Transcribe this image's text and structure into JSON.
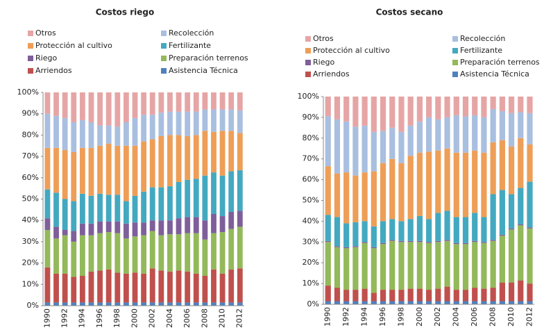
{
  "chart_data": [
    {
      "type": "bar",
      "stacked": true,
      "title": "Costos riego",
      "categories": [
        "1990",
        null,
        "1992",
        null,
        "1994",
        null,
        "1996",
        null,
        "1998",
        null,
        "2000",
        null,
        "2002",
        null,
        "2004",
        null,
        "2006",
        null,
        "2008",
        null,
        "2010",
        null,
        "2012"
      ],
      "ylim": [
        0,
        100
      ],
      "yticks": [
        {
          "value": 0,
          "label": "0%"
        },
        {
          "value": 10,
          "label": "10%"
        },
        {
          "value": 20,
          "label": "20%"
        },
        {
          "value": 30,
          "label": "30%"
        },
        {
          "value": 40,
          "label": "40%"
        },
        {
          "value": 50,
          "label": "50%"
        },
        {
          "value": 60,
          "label": "60%"
        },
        {
          "value": 70,
          "label": "70%"
        },
        {
          "value": 80,
          "label": "80%"
        },
        {
          "value": 90,
          "label": "90%"
        },
        {
          "value": 100,
          "label": "100%"
        }
      ],
      "series": [
        {
          "name": "Otros",
          "color": "#e6a5a5",
          "values": [
            10,
            11,
            12,
            14,
            13,
            14,
            15.5,
            15.5,
            16,
            14,
            12,
            10.5,
            10.5,
            9.5,
            9,
            9,
            9,
            9,
            8,
            8,
            8,
            8,
            8.5
          ]
        },
        {
          "name": "Recolección",
          "color": "#a9bfe0",
          "values": [
            16,
            15,
            15,
            14,
            13,
            12,
            9.5,
            8.5,
            9,
            11,
            13,
            12.5,
            11.5,
            11,
            11,
            11,
            11.5,
            11,
            10,
            10.5,
            10,
            10,
            10.5
          ]
        },
        {
          "name": "Protección al cultivo",
          "color": "#ee9e57",
          "values": [
            19.5,
            21,
            23,
            23,
            21.5,
            22.5,
            22.5,
            24,
            23,
            26,
            23.5,
            23.5,
            22.5,
            24,
            24,
            22,
            20.5,
            20.5,
            21,
            19,
            21,
            19,
            17.5
          ]
        },
        {
          "name": "Fertilizante",
          "color": "#43a9c0",
          "values": [
            13.5,
            16,
            14.5,
            14,
            14,
            13,
            13,
            12.5,
            12.5,
            10.5,
            12.5,
            14.5,
            15.5,
            15.5,
            16,
            17,
            17.5,
            18,
            21,
            19.5,
            19,
            19,
            19
          ]
        },
        {
          "name": "Riego",
          "color": "#7e5f9a",
          "values": [
            5.5,
            5.5,
            2.5,
            5,
            5.5,
            5.5,
            5.5,
            5,
            5.5,
            7,
            6.5,
            6,
            5,
            7,
            6.5,
            7.5,
            7.5,
            7.5,
            9,
            9,
            7.5,
            8,
            7.5
          ]
        },
        {
          "name": "Preparación terrenos",
          "color": "#93b95a",
          "values": [
            17.5,
            16.5,
            18,
            16.5,
            19,
            17,
            17.5,
            17.5,
            18.5,
            16.5,
            17,
            18,
            17.5,
            16.5,
            17.5,
            17,
            18,
            19,
            17,
            17,
            19.5,
            19,
            19.5
          ]
        },
        {
          "name": "Arriendos",
          "color": "#c0504d",
          "values": [
            16.5,
            13.5,
            13.5,
            12,
            12.5,
            14.5,
            15,
            15.5,
            14,
            13.5,
            14,
            13.5,
            16,
            15,
            14.5,
            15,
            14.5,
            13.5,
            12.5,
            15.5,
            13.5,
            15.5,
            16
          ]
        },
        {
          "name": "Asistencia Técnica",
          "color": "#4f81bd",
          "values": [
            1.5,
            1.5,
            1.5,
            1.5,
            1.5,
            1.5,
            1.5,
            1.5,
            1.5,
            1.5,
            1.5,
            1.5,
            1.5,
            1.5,
            1.5,
            1.5,
            1.5,
            1.5,
            1.5,
            1.5,
            1.5,
            1.5,
            1.5
          ]
        }
      ]
    },
    {
      "type": "bar",
      "stacked": true,
      "title": "Costos secano",
      "categories": [
        "1990",
        null,
        "1992",
        null,
        "1994",
        null,
        "1996",
        null,
        "1998",
        null,
        "2000",
        null,
        "2002",
        null,
        "2004",
        null,
        "2006",
        null,
        "2008",
        null,
        "2010",
        null,
        "2012"
      ],
      "ylim": [
        0,
        100
      ],
      "yticks": [
        {
          "value": 0,
          "label": "0%"
        },
        {
          "value": 10,
          "label": "10%"
        },
        {
          "value": 20,
          "label": "20%"
        },
        {
          "value": 30,
          "label": "30%"
        },
        {
          "value": 40,
          "label": "40%"
        },
        {
          "value": 50,
          "label": "50%"
        },
        {
          "value": 60,
          "label": "60%"
        },
        {
          "value": 70,
          "label": "70%"
        },
        {
          "value": 80,
          "label": "80%"
        },
        {
          "value": 90,
          "label": "90%"
        },
        {
          "value": 100,
          "label": "100%"
        }
      ],
      "series": [
        {
          "name": "Otros",
          "color": "#e6a5a5",
          "values": [
            9.5,
            11,
            12,
            14.5,
            14,
            17,
            16.5,
            15,
            17,
            14,
            12,
            10,
            11,
            10,
            9,
            9.5,
            9,
            10,
            6,
            7,
            8,
            7.5,
            8
          ]
        },
        {
          "name": "Recolección",
          "color": "#a9bfe0",
          "values": [
            24,
            26,
            24.5,
            23.5,
            22.5,
            19,
            15.5,
            15,
            15,
            14.5,
            15,
            16.5,
            15,
            15,
            18,
            17.5,
            17,
            17,
            16,
            14,
            16,
            12.5,
            15
          ]
        },
        {
          "name": "Protección al cultivo",
          "color": "#ee9e57",
          "values": [
            23.5,
            21,
            24.5,
            22.5,
            23.5,
            26.5,
            28,
            29,
            28,
            30.5,
            30.5,
            32.5,
            30,
            30,
            31,
            31,
            30,
            31,
            25,
            24,
            23,
            24,
            18
          ]
        },
        {
          "name": "Fertilizante",
          "color": "#43a9c0",
          "values": [
            12.5,
            14,
            11.5,
            11.5,
            10,
            10,
            10.5,
            10,
            9.5,
            10.5,
            12,
            11,
            13.5,
            14,
            12.5,
            12.5,
            13.5,
            12,
            22,
            21.5,
            16.5,
            17.5,
            22
          ]
        },
        {
          "name": "Riego",
          "color": "#7e5f9a",
          "values": [
            0.5,
            0.5,
            0.5,
            0.5,
            0.5,
            0.5,
            0.5,
            0.5,
            0.5,
            0.5,
            0.5,
            0.5,
            0.5,
            0.5,
            0.5,
            0.5,
            0.5,
            0.5,
            0.5,
            0.5,
            0.5,
            0.5,
            0.5
          ]
        },
        {
          "name": "Preparación terrenos",
          "color": "#93b95a",
          "values": [
            21,
            19.5,
            20,
            20.5,
            22,
            21.5,
            22,
            23.5,
            23,
            22.5,
            22.5,
            22.5,
            22.5,
            22,
            22,
            22,
            22,
            22,
            22.5,
            22.5,
            25.5,
            26.5,
            26.5
          ]
        },
        {
          "name": "Arriendos",
          "color": "#c0504d",
          "values": [
            7.5,
            6.5,
            5.5,
            5.5,
            6,
            4,
            5.5,
            5.5,
            5.5,
            6,
            6,
            5.5,
            6,
            7,
            5.5,
            5.5,
            6.5,
            6,
            6.5,
            9,
            9,
            10,
            8.5
          ]
        },
        {
          "name": "Asistencia Técnica",
          "color": "#4f81bd",
          "values": [
            1.5,
            1.5,
            1.5,
            1.5,
            1.5,
            1.5,
            1.5,
            1.5,
            1.5,
            1.5,
            1.5,
            1.5,
            1.5,
            1.5,
            1.5,
            1.5,
            1.5,
            1.5,
            1.5,
            1.5,
            1.5,
            1.5,
            1.5
          ]
        }
      ]
    }
  ]
}
